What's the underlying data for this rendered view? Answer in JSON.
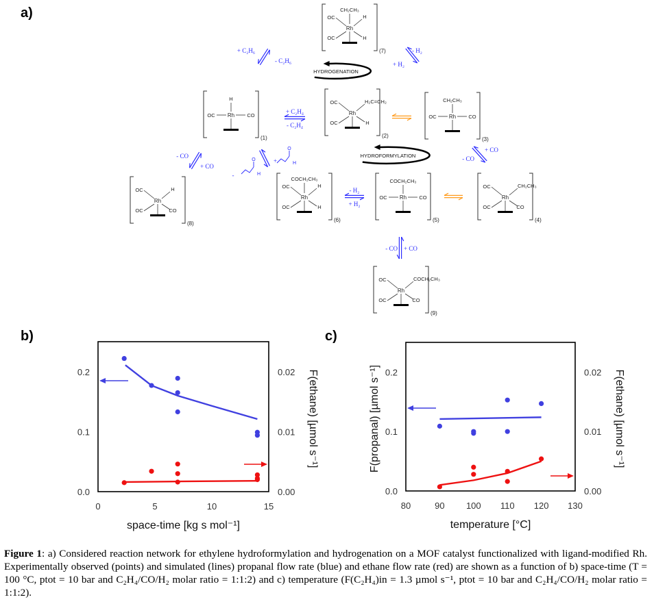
{
  "panels": {
    "a": "a)",
    "b": "b)",
    "c": "c)"
  },
  "network": {
    "complexes": [
      {
        "id": "7",
        "label": "(7)",
        "type": "oct",
        "top": "CH₂CH₃",
        "ul": "OC",
        "ll": "OC",
        "ur": "H",
        "lr": "H"
      },
      {
        "id": "1",
        "label": "(1)",
        "type": "square",
        "top": "H",
        "left": "OC",
        "right": "CO"
      },
      {
        "id": "2",
        "label": "(2)",
        "type": "oct",
        "top": "",
        "ul": "OC",
        "ll": "OC",
        "ur": "H₂C=CH₂",
        "lr": "H"
      },
      {
        "id": "3",
        "label": "(3)",
        "type": "square",
        "top": "CH₂CH₃",
        "left": "OC",
        "right": "CO"
      },
      {
        "id": "8",
        "label": "(8)",
        "type": "oct",
        "top": "",
        "ul": "OC",
        "ll": "OC",
        "ur": "H",
        "lr": "CO"
      },
      {
        "id": "6",
        "label": "(6)",
        "type": "oct",
        "top": "COCH₂CH₃",
        "ul": "OC",
        "ll": "OC",
        "ur": "H",
        "lr": "H"
      },
      {
        "id": "5",
        "label": "(5)",
        "type": "square",
        "top": "COCH₂CH₃",
        "left": "OC",
        "right": "CO"
      },
      {
        "id": "4",
        "label": "(4)",
        "type": "oct",
        "top": "",
        "ul": "OC",
        "ll": "OC",
        "ur": "CH₂CH₃",
        "lr": "CO"
      },
      {
        "id": "9",
        "label": "(9)",
        "type": "oct",
        "top": "",
        "ul": "OC",
        "ll": "OC",
        "ur": "COCH₂CH₃",
        "lr": "CO"
      }
    ],
    "steps": [
      {
        "id": "7-1",
        "color": "blue",
        "labels": [
          "+ C₂H₆",
          "- C₂H₆"
        ]
      },
      {
        "id": "2-7",
        "color": "blue",
        "labels": [
          "- H₂",
          "+ H₂"
        ]
      },
      {
        "id": "1-2",
        "color": "blue",
        "labels": [
          "+ C₂H₄",
          "- C₂H₄"
        ]
      },
      {
        "id": "2-3",
        "color": "orange",
        "labels": []
      },
      {
        "id": "3-4",
        "color": "blue",
        "labels": [
          "+ CO",
          "- CO"
        ]
      },
      {
        "id": "4-5",
        "color": "orange",
        "labels": []
      },
      {
        "id": "5-6",
        "color": "blue",
        "labels": [
          "- H₂",
          "+ H₂"
        ]
      },
      {
        "id": "6-1",
        "color": "blue",
        "labels": [
          "+",
          "-"
        ]
      },
      {
        "id": "1-8",
        "color": "blue",
        "labels": [
          "- CO",
          "+ CO"
        ]
      },
      {
        "id": "5-9",
        "color": "blue",
        "labels": [
          "- CO",
          "+ CO"
        ]
      }
    ],
    "cycles": {
      "hydrogenation": "HYDROGENATION",
      "hydroformylation": "HYDROFORMYLATION"
    },
    "metal": "Rh",
    "aldehyde_atoms": {
      "o": "O",
      "h": "H"
    },
    "colors": {
      "blue": "#2b2bff",
      "orange": "#ff9a1a",
      "black": "#111111"
    }
  },
  "chart_data": [
    {
      "type": "scatter",
      "panel": "b",
      "xlabel": "space-time [kg s mol⁻¹]",
      "ylabel": "",
      "y2label": "F(ethane) [µmol s⁻¹]",
      "xlim": [
        0,
        15
      ],
      "ylim": [
        0,
        0.25
      ],
      "y2lim": [
        0,
        0.025
      ],
      "xticks": [
        "0",
        "5",
        "10",
        "15"
      ],
      "yticks": [
        "0.0",
        "0.1",
        "0.2"
      ],
      "y2ticks": [
        "0.00",
        "0.01",
        "0.02"
      ],
      "grid": false,
      "series": [
        {
          "color": "#4040e0",
          "axis": "left",
          "points": [
            [
              2.3,
              0.222
            ],
            [
              4.7,
              0.177
            ],
            [
              7,
              0.189
            ],
            [
              7,
              0.165
            ],
            [
              7,
              0.133
            ],
            [
              14,
              0.099
            ],
            [
              14,
              0.094
            ]
          ],
          "line": [
            [
              2.4,
              0.211
            ],
            [
              4.7,
              0.177
            ],
            [
              7,
              0.16
            ],
            [
              10,
              0.143
            ],
            [
              14,
              0.121
            ]
          ]
        },
        {
          "color": "#ee1111",
          "axis": "right",
          "points": [
            [
              2.3,
              0.0015
            ],
            [
              4.7,
              0.0034
            ],
            [
              7,
              0.0046
            ],
            [
              7,
              0.003
            ],
            [
              7,
              0.0016
            ],
            [
              14,
              0.0028
            ],
            [
              14,
              0.0022
            ],
            [
              14,
              0.002
            ]
          ],
          "line": [
            [
              2.4,
              0.0016
            ],
            [
              7,
              0.0017
            ],
            [
              14,
              0.0018
            ]
          ]
        }
      ],
      "axis_arrows": [
        "left",
        "right"
      ]
    },
    {
      "type": "scatter",
      "panel": "c",
      "xlabel": "temperature [°C]",
      "ylabel": "F(propanal) [µmol s⁻¹]",
      "y2label": "F(ethane) [µmol s⁻¹]",
      "xlim": [
        80,
        130
      ],
      "ylim": [
        0,
        0.25
      ],
      "y2lim": [
        0,
        0.025
      ],
      "xticks": [
        "80",
        "90",
        "100",
        "110",
        "120",
        "130"
      ],
      "yticks": [
        "0.0",
        "0.1",
        "0.2"
      ],
      "y2ticks": [
        "0.00",
        "0.01",
        "0.02"
      ],
      "grid": false,
      "series": [
        {
          "color": "#4040e0",
          "axis": "left",
          "points": [
            [
              90,
              0.109
            ],
            [
              100,
              0.1
            ],
            [
              100,
              0.097
            ],
            [
              110,
              0.153
            ],
            [
              110,
              0.1
            ],
            [
              120,
              0.147
            ]
          ],
          "line": [
            [
              90,
              0.121
            ],
            [
              120,
              0.124
            ]
          ]
        },
        {
          "color": "#ee1111",
          "axis": "right",
          "points": [
            [
              90,
              0.0007
            ],
            [
              100,
              0.004
            ],
            [
              100,
              0.0028
            ],
            [
              110,
              0.0033
            ],
            [
              110,
              0.0016
            ],
            [
              120,
              0.0054
            ]
          ],
          "line": [
            [
              90,
              0.001
            ],
            [
              100,
              0.0018
            ],
            [
              110,
              0.003
            ],
            [
              120,
              0.005
            ]
          ]
        }
      ],
      "axis_arrows": [
        "left",
        "right"
      ]
    }
  ],
  "caption": {
    "label": "Figure 1",
    "text": ": a) Considered reaction network for ethylene hydroformylation and hydrogenation on a MOF catalyst functionalized with ligand-modified Rh. Experimentally observed (points) and simulated (lines) propanal flow rate (blue) and ethane flow rate (red) are shown as a function of b) space-time (T = 100 °C, ptot = 10 bar and C₂H₄/CO/H₂ molar ratio = 1:1:2) and c) temperature (F(C₂H₄)in = 1.3 µmol s⁻¹, ptot = 10 bar and C₂H₄/CO/H₂ molar ratio = 1:1:2)."
  }
}
